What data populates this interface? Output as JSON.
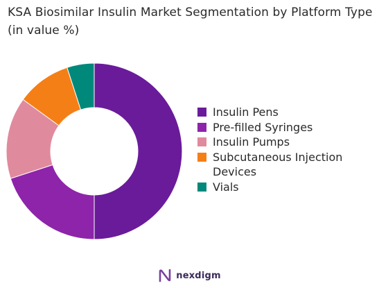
{
  "chart_data": {
    "type": "pie",
    "donut": true,
    "title": "KSA Biosimilar Insulin Market Segmentation by Platform Type (in value %)",
    "categories": [
      "Insulin Pens",
      "Pre-filled Syringes",
      "Insulin Pumps",
      "Subcutaneous Injection Devices",
      "Vials"
    ],
    "values": [
      50,
      20,
      15,
      10,
      5
    ],
    "colors": [
      "#6a1b9a",
      "#8e24aa",
      "#e08a9e",
      "#f57f17",
      "#00897b"
    ],
    "legend_position": "right"
  },
  "brand": {
    "name": "nexdigm"
  }
}
